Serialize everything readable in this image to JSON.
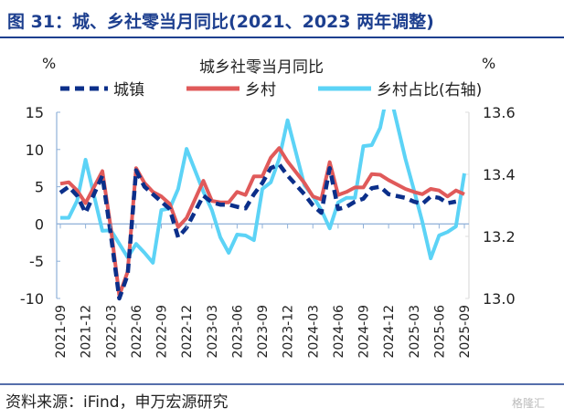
{
  "figure_title": "图 31：城、乡社零当月同比(2021、2023 两年调整)",
  "source": "资料来源：iFind，申万宏源研究",
  "watermark": "格隆汇",
  "colors": {
    "title": "#1d3f8f",
    "urban": "#0b2f8a",
    "rural": "#e05a5a",
    "share": "#5cd3f6",
    "axis": "#8fb0d8"
  },
  "chart_data": {
    "type": "line",
    "title": "城乡社零当月同比",
    "left_unit": "%",
    "right_unit": "%",
    "ylim": [
      -10,
      15
    ],
    "y2lim": [
      13.0,
      13.6
    ],
    "yticks": [
      "15",
      "10",
      "5",
      "0",
      "-5",
      "-10"
    ],
    "y2ticks": [
      "13.6",
      "13.4",
      "13.2",
      "13.0"
    ],
    "yticks_values": [
      15,
      10,
      5,
      0,
      -5,
      -10
    ],
    "y2ticks_values": [
      13.6,
      13.4,
      13.2,
      13.0
    ],
    "x": [
      "2021-09",
      "2021-10",
      "2021-11",
      "2021-12",
      "2022-01",
      "2022-02",
      "2022-03",
      "2022-04",
      "2022-05",
      "2022-06",
      "2022-07",
      "2022-08",
      "2022-09",
      "2022-10",
      "2022-11",
      "2022-12",
      "2023-01",
      "2023-02",
      "2023-03",
      "2023-04",
      "2023-05",
      "2023-06",
      "2023-07",
      "2023-08",
      "2023-09",
      "2023-10",
      "2023-11",
      "2023-12",
      "2024-01",
      "2024-02",
      "2024-03",
      "2024-04",
      "2024-05",
      "2024-06",
      "2024-07",
      "2024-08",
      "2024-09",
      "2024-10",
      "2024-11",
      "2024-12",
      "2025-01",
      "2025-02",
      "2025-03",
      "2025-04",
      "2025-05",
      "2025-06",
      "2025-07",
      "2025-08",
      "2025-09"
    ],
    "xtick_labels": [
      "2021-09",
      "2021-12",
      "2022-03",
      "2022-06",
      "2022-09",
      "2022-12",
      "2023-03",
      "2023-06",
      "2023-09",
      "2023-12",
      "2024-03",
      "2024-06",
      "2024-09",
      "2024-12",
      "2025-03",
      "2025-06",
      "2025-09"
    ],
    "series": [
      {
        "name": "城镇",
        "axis": "left",
        "style": "dashed",
        "values": [
          4.2,
          5.0,
          3.8,
          1.5,
          null,
          6.5,
          -1.5,
          -10.0,
          -6.8,
          7.2,
          5.0,
          4.0,
          3.0,
          2.0,
          -1.8,
          -0.5,
          null,
          3.8,
          2.9,
          2.6,
          2.6,
          2.3,
          2.1,
          4.0,
          5.5,
          7.5,
          8.0,
          6.5,
          null,
          4.0,
          2.5,
          1.5,
          7.5,
          2.0,
          2.3,
          3.0,
          3.4,
          4.8,
          5.0,
          4.0,
          null,
          3.5,
          3.0,
          2.7,
          3.7,
          3.5,
          2.8,
          3.0,
          null
        ]
      },
      {
        "name": "乡村",
        "axis": "left",
        "style": "solid",
        "values": [
          5.4,
          5.6,
          4.5,
          2.8,
          null,
          7.1,
          -0.6,
          -9.6,
          -6.4,
          7.5,
          5.5,
          4.3,
          3.7,
          2.7,
          -0.4,
          0.8,
          null,
          5.8,
          3.1,
          2.9,
          2.9,
          4.3,
          3.9,
          6.4,
          6.4,
          8.9,
          10.2,
          8.4,
          null,
          5.5,
          3.7,
          3.3,
          8.3,
          3.9,
          4.3,
          4.9,
          4.9,
          6.7,
          6.6,
          5.9,
          null,
          4.7,
          4.3,
          4.0,
          4.7,
          4.5,
          3.7,
          4.5,
          4.0
        ]
      },
      {
        "name": "乡村占比(右轴)",
        "axis": "right",
        "style": "solid",
        "values": [
          13.26,
          13.26,
          13.315,
          13.447,
          null,
          13.218,
          13.22,
          13.176,
          13.132,
          13.176,
          13.147,
          13.115,
          13.285,
          13.29,
          13.353,
          13.482,
          null,
          13.344,
          13.285,
          13.197,
          13.147,
          13.206,
          13.203,
          13.188,
          13.353,
          13.374,
          13.45,
          13.574,
          null,
          13.365,
          13.33,
          13.285,
          13.226,
          13.309,
          13.324,
          13.324,
          13.491,
          13.494,
          13.55,
          13.68,
          null,
          13.45,
          13.35,
          13.247,
          13.129,
          13.203,
          13.214,
          13.232,
          13.403
        ]
      }
    ]
  }
}
